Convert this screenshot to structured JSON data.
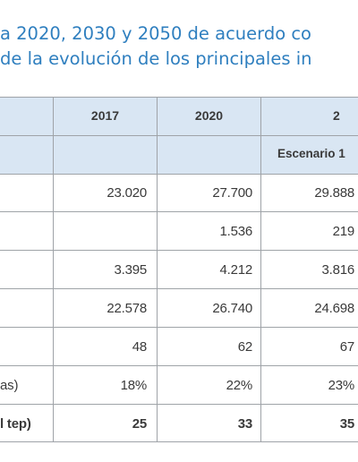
{
  "title": {
    "line1": "a 2020, 2030 y 2050 de acuerdo co",
    "line2": "de la evolución de los principales in"
  },
  "table": {
    "headers": {
      "col2017": "2017",
      "col2020": "2020",
      "col2030_partial": "2",
      "scenario": "Escenario 1"
    },
    "rows": [
      {
        "label": "",
        "v2017": "23.020",
        "v2020": "27.700",
        "v2030": "29.888"
      },
      {
        "label": "",
        "v2017": "",
        "v2020": "1.536",
        "v2030": "219"
      },
      {
        "label": "",
        "v2017": "3.395",
        "v2020": "4.212",
        "v2030": "3.816"
      },
      {
        "label": "",
        "v2017": "22.578",
        "v2020": "26.740",
        "v2030": "24.698"
      },
      {
        "label": "",
        "v2017": "48",
        "v2020": "62",
        "v2030": "67"
      },
      {
        "label": "as)",
        "v2017": "18%",
        "v2020": "22%",
        "v2030": "23%"
      },
      {
        "label": "l tep)",
        "v2017": "25",
        "v2020": "33",
        "v2030": "35"
      }
    ]
  },
  "colors": {
    "title": "#2f7fbf",
    "header_bg": "#d9e6f3",
    "grid": "#9fa3a8",
    "text": "#3a3a3a"
  }
}
